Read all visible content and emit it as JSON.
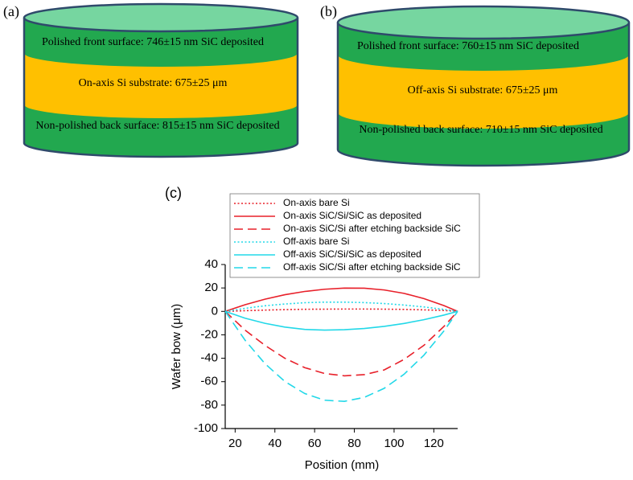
{
  "diagram_a": {
    "label": "(a)",
    "front": "Polished front surface: 746±15 nm SiC deposited",
    "substrate": "On-axis Si substrate: 675±25 μm",
    "back": "Non-polished back surface: 815±15 nm SiC deposited"
  },
  "diagram_b": {
    "label": "(b)",
    "front": "Polished front surface: 760±15 nm SiC deposited",
    "substrate": "Off-axis Si substrate: 675±25 μm",
    "back": "Non-polished back surface: 710±15 nm SiC deposited"
  },
  "chart_data": {
    "type": "line",
    "panel_label": "(c)",
    "x_label": "Position (mm)",
    "y_label": "Wafer bow (μm)",
    "x": [
      15,
      25,
      35,
      45,
      55,
      65,
      75,
      85,
      95,
      105,
      115,
      125,
      132
    ],
    "series": [
      {
        "name": "On-axis bare Si",
        "color": "#e8202a",
        "style": "dotted",
        "values": [
          0,
          0.6,
          1.1,
          1.5,
          1.8,
          1.9,
          2,
          2,
          1.9,
          1.7,
          1.3,
          0.8,
          0
        ]
      },
      {
        "name": "On-axis SiC/Si/SiC as deposited",
        "color": "#e8202a",
        "style": "solid",
        "values": [
          0,
          5.7,
          10.4,
          14.2,
          17,
          18.9,
          19.9,
          19.8,
          18.3,
          15.4,
          10.9,
          5,
          0
        ]
      },
      {
        "name": "On-axis SiC/Si after etching backside SiC",
        "color": "#e8202a",
        "style": "dashed",
        "values": [
          0,
          -16,
          -29,
          -40,
          -48,
          -53,
          -55,
          -54,
          -50,
          -41,
          -29,
          -13,
          0
        ]
      },
      {
        "name": "Off-axis bare Si",
        "color": "#22d8e8",
        "style": "dotted",
        "values": [
          0,
          2.6,
          4.8,
          6.3,
          7.4,
          7.9,
          7.9,
          7.5,
          6.7,
          5.4,
          3.8,
          1.7,
          0
        ]
      },
      {
        "name": "Off-axis SiC/Si/SiC as deposited",
        "color": "#22d8e8",
        "style": "solid",
        "values": [
          0,
          -5.8,
          -10.2,
          -13.4,
          -15.4,
          -16,
          -15.6,
          -14.6,
          -12.8,
          -10.3,
          -7.1,
          -3.2,
          0
        ]
      },
      {
        "name": "Off-axis SiC/Si after etching backside SiC",
        "color": "#22d8e8",
        "style": "dashed",
        "values": [
          0,
          -24.6,
          -44.6,
          -59.8,
          -70.1,
          -75.8,
          -76.8,
          -73.4,
          -65.7,
          -53.7,
          -37.4,
          -16.9,
          0
        ]
      }
    ],
    "xlim": [
      15,
      132
    ],
    "xticks": [
      20,
      40,
      60,
      80,
      100,
      120
    ],
    "ylim": [
      -100,
      40
    ],
    "yticks": [
      -100,
      -80,
      -60,
      -40,
      -20,
      0,
      20,
      40
    ],
    "legend": "top"
  }
}
